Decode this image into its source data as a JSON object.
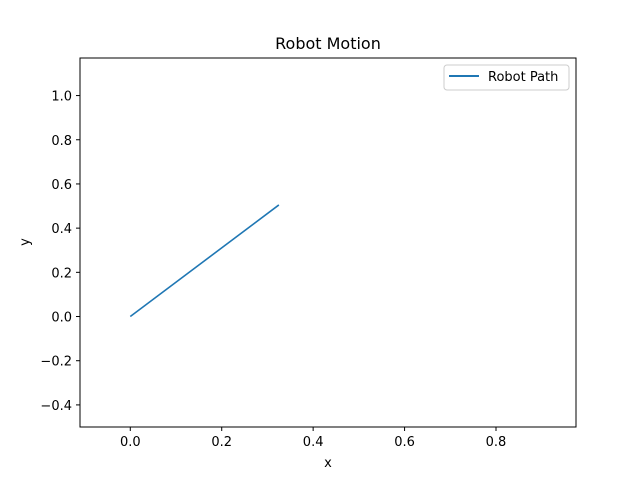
{
  "chart_data": {
    "type": "line",
    "title": "Robot Motion",
    "xlabel": "x",
    "ylabel": "y",
    "xlim": [
      -0.11,
      0.975
    ],
    "ylim": [
      -0.5,
      1.17
    ],
    "xticks": [
      0.0,
      0.2,
      0.4,
      0.6,
      0.8
    ],
    "xtick_labels": [
      "0.0",
      "0.2",
      "0.4",
      "0.6",
      "0.8"
    ],
    "yticks": [
      -0.4,
      -0.2,
      0.0,
      0.2,
      0.4,
      0.6,
      0.8,
      1.0
    ],
    "ytick_labels": [
      "−0.4",
      "−0.2",
      "0.0",
      "0.2",
      "0.4",
      "0.6",
      "0.8",
      "1.0"
    ],
    "grid": false,
    "legend_position": "top-right",
    "series": [
      {
        "name": "Robot Path",
        "color": "#1f77b4",
        "x": [
          0.0,
          0.325
        ],
        "y": [
          0.0,
          0.505
        ]
      }
    ]
  }
}
